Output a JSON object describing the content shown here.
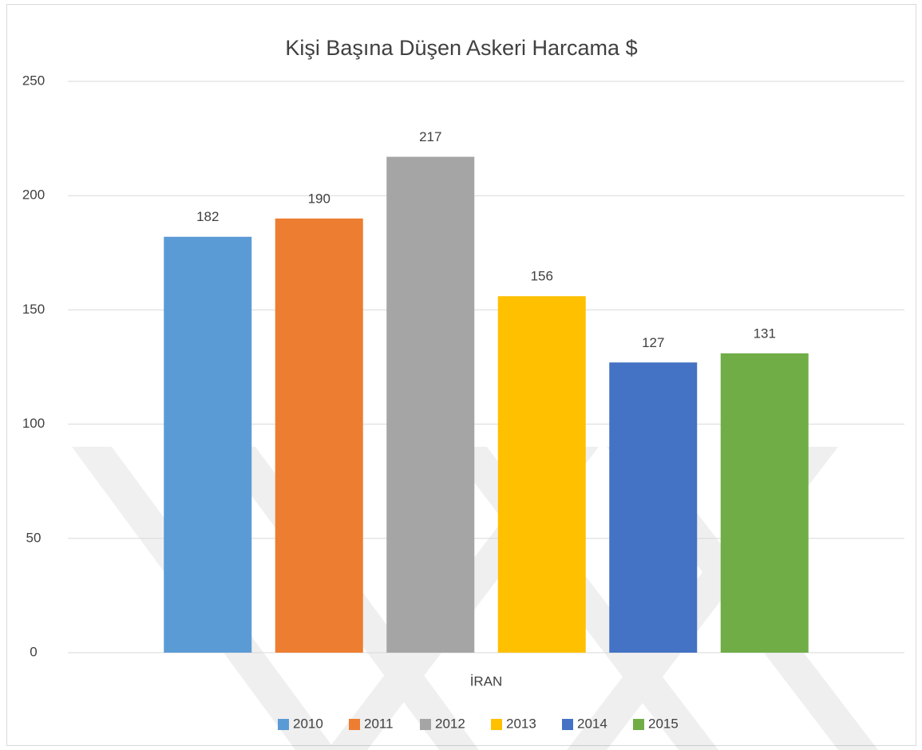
{
  "chart_data": {
    "type": "bar",
    "title": "Kişi Başına Düşen Askeri Harcama $",
    "categories": [
      "İRAN"
    ],
    "series": [
      {
        "name": "2010",
        "color": "#5b9bd5",
        "values": [
          182
        ]
      },
      {
        "name": "2011",
        "color": "#ed7d31",
        "values": [
          190
        ]
      },
      {
        "name": "2012",
        "color": "#a5a5a5",
        "values": [
          217
        ]
      },
      {
        "name": "2013",
        "color": "#ffc000",
        "values": [
          156
        ]
      },
      {
        "name": "2014",
        "color": "#4472c4",
        "values": [
          127
        ]
      },
      {
        "name": "2015",
        "color": "#70ad47",
        "values": [
          131
        ]
      }
    ],
    "ylim": [
      0,
      250
    ],
    "yticks": [
      0,
      50,
      100,
      150,
      200,
      250
    ],
    "grid": true,
    "legend": "bottom"
  }
}
